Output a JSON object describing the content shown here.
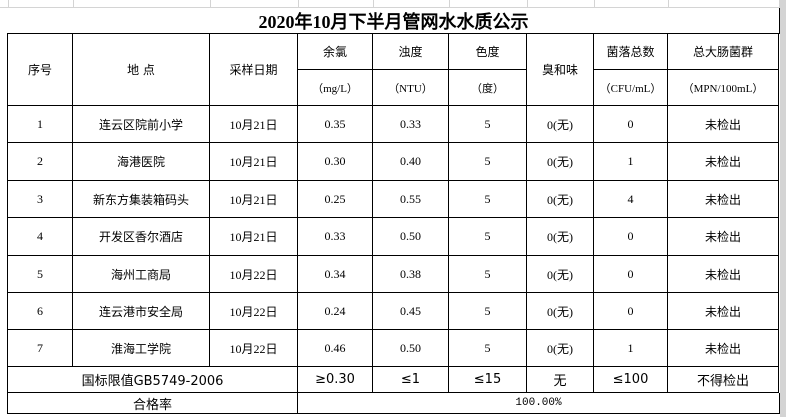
{
  "title": "2020年10月下半月管网水水质公示",
  "header": {
    "columns": [
      {
        "name": "序号"
      },
      {
        "name": "地 点"
      },
      {
        "name": "采样日期"
      },
      {
        "name": "余氯",
        "unit": "（mg/L）"
      },
      {
        "name": "浊度",
        "unit": "（NTU）"
      },
      {
        "name": "色度",
        "unit": "（度）"
      },
      {
        "name": "臭和味"
      },
      {
        "name": "菌落总数",
        "unit": "（CFU/mL）"
      },
      {
        "name": "总大肠菌群",
        "unit": "（MPN/100mL）"
      }
    ]
  },
  "table": {
    "rows": [
      [
        "1",
        "连云区院前小学",
        "10月21日",
        "0.35",
        "0.33",
        "5",
        "0(无)",
        "0",
        "未检出"
      ],
      [
        "2",
        "海港医院",
        "10月21日",
        "0.30",
        "0.40",
        "5",
        "0(无)",
        "1",
        "未检出"
      ],
      [
        "3",
        "新东方集装箱码头",
        "10月21日",
        "0.25",
        "0.55",
        "5",
        "0(无)",
        "4",
        "未检出"
      ],
      [
        "4",
        "开发区香尔酒店",
        "10月21日",
        "0.33",
        "0.50",
        "5",
        "0(无)",
        "0",
        "未检出"
      ],
      [
        "5",
        "海州工商局",
        "10月22日",
        "0.34",
        "0.38",
        "5",
        "0(无)",
        "0",
        "未检出"
      ],
      [
        "6",
        "连云港市安全局",
        "10月22日",
        "0.24",
        "0.45",
        "5",
        "0(无)",
        "0",
        "未检出"
      ],
      [
        "7",
        "淮海工学院",
        "10月22日",
        "0.46",
        "0.50",
        "5",
        "0(无)",
        "1",
        "未检出"
      ]
    ]
  },
  "limits": {
    "label": "国标限值GB5749-2006",
    "values": [
      "≥0.30",
      "≤1",
      "≤15",
      "无",
      "≤100",
      "不得检出"
    ]
  },
  "pass_rate": {
    "label": "合格率",
    "value": "100.00%"
  }
}
